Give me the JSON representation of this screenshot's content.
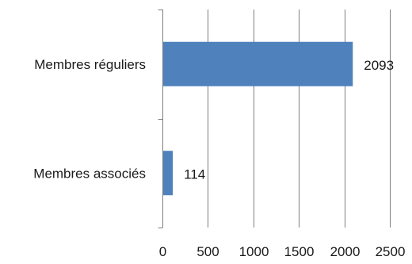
{
  "chart_data": {
    "type": "bar",
    "orientation": "horizontal",
    "title": "",
    "xlabel": "",
    "ylabel": "",
    "categories": [
      "Membres réguliers",
      "Membres associés"
    ],
    "values": [
      2093,
      114
    ],
    "data_labels": [
      "2093",
      "114"
    ],
    "xlim": [
      0,
      2500
    ],
    "x_ticks": [
      0,
      500,
      1000,
      1500,
      2000,
      2500
    ],
    "x_tick_labels": [
      "0",
      "500",
      "1000",
      "1500",
      "2000",
      "2500"
    ],
    "grid": true,
    "legend": "none",
    "colors": {
      "bar": "#4f81bd",
      "grid": "#7f7f7f",
      "text": "#1a1a1a"
    }
  }
}
